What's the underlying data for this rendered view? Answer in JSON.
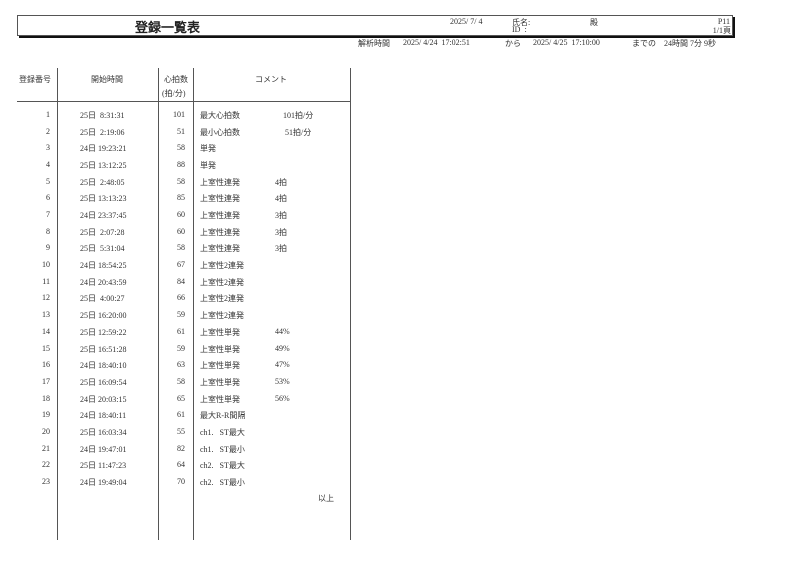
{
  "header": {
    "title": "登録一覧表",
    "date": "2025/ 7/ 4",
    "name_label": "氏名:",
    "honorific": "殿",
    "id_label": "ID  :",
    "page_code": "P11",
    "page_count": "1/1頁"
  },
  "analysis": {
    "label": "解析時間",
    "start": "2025/ 4/24  17:02:51",
    "from": "から",
    "end": "2025/ 4/25  17:10:00",
    "until": "までの",
    "duration": "24時間 7分 9秒"
  },
  "table": {
    "headers": {
      "no": "登録番号",
      "time": "開始時間",
      "bpm_line1": "心拍数",
      "bpm_line2": "(拍/分)",
      "comment": "コメント"
    },
    "rows": [
      {
        "no": "1",
        "time": "25日  8:31:31",
        "bpm": "101",
        "comment": "最大心拍数",
        "extra": "101拍/分"
      },
      {
        "no": "2",
        "time": "25日  2:19:06",
        "bpm": "51",
        "comment": "最小心拍数",
        "extra": " 51拍/分"
      },
      {
        "no": "3",
        "time": "24日 19:23:21",
        "bpm": "58",
        "comment": "単発",
        "extra": ""
      },
      {
        "no": "4",
        "time": "25日 13:12:25",
        "bpm": "88",
        "comment": "単発",
        "extra": ""
      },
      {
        "no": "5",
        "time": "25日  2:48:05",
        "bpm": "58",
        "comment": "上室性連発",
        "extra": "4拍"
      },
      {
        "no": "6",
        "time": "25日 13:13:23",
        "bpm": "85",
        "comment": "上室性連発",
        "extra": "4拍"
      },
      {
        "no": "7",
        "time": "24日 23:37:45",
        "bpm": "60",
        "comment": "上室性連発",
        "extra": "3拍"
      },
      {
        "no": "8",
        "time": "25日  2:07:28",
        "bpm": "60",
        "comment": "上室性連発",
        "extra": "3拍"
      },
      {
        "no": "9",
        "time": "25日  5:31:04",
        "bpm": "58",
        "comment": "上室性連発",
        "extra": "3拍"
      },
      {
        "no": "10",
        "time": "24日 18:54:25",
        "bpm": "67",
        "comment": "上室性2連発",
        "extra": ""
      },
      {
        "no": "11",
        "time": "24日 20:43:59",
        "bpm": "84",
        "comment": "上室性2連発",
        "extra": ""
      },
      {
        "no": "12",
        "time": "25日  4:00:27",
        "bpm": "66",
        "comment": "上室性2連発",
        "extra": ""
      },
      {
        "no": "13",
        "time": "25日 16:20:00",
        "bpm": "59",
        "comment": "上室性2連発",
        "extra": ""
      },
      {
        "no": "14",
        "time": "25日 12:59:22",
        "bpm": "61",
        "comment": "上室性単発",
        "extra": "44%"
      },
      {
        "no": "15",
        "time": "25日 16:51:28",
        "bpm": "59",
        "comment": "上室性単発",
        "extra": "49%"
      },
      {
        "no": "16",
        "time": "24日 18:40:10",
        "bpm": "63",
        "comment": "上室性単発",
        "extra": "47%"
      },
      {
        "no": "17",
        "time": "25日 16:09:54",
        "bpm": "58",
        "comment": "上室性単発",
        "extra": "53%"
      },
      {
        "no": "18",
        "time": "24日 20:03:15",
        "bpm": "65",
        "comment": "上室性単発",
        "extra": "56%"
      },
      {
        "no": "19",
        "time": "24日 18:40:11",
        "bpm": "61",
        "comment": "最大R-R間隔",
        "extra": ""
      },
      {
        "no": "20",
        "time": "25日 16:03:34",
        "bpm": "55",
        "comment": "ch1.   ST最大",
        "extra": ""
      },
      {
        "no": "21",
        "time": "24日 19:47:01",
        "bpm": "82",
        "comment": "ch1.   ST最小",
        "extra": ""
      },
      {
        "no": "22",
        "time": "25日 11:47:23",
        "bpm": "64",
        "comment": "ch2.   ST最大",
        "extra": ""
      },
      {
        "no": "23",
        "time": "24日 19:49:04",
        "bpm": "70",
        "comment": "ch2.   ST最小",
        "extra": ""
      }
    ],
    "end_mark": "以上"
  }
}
